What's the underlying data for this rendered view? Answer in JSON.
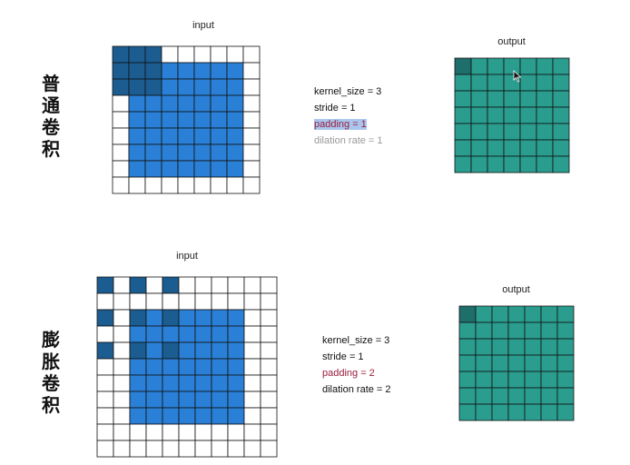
{
  "sections": [
    {
      "title": "普通卷积",
      "input_label": "input",
      "output_label": "output",
      "params": {
        "kernel": "kernel_size = 3",
        "stride": "stride = 1",
        "padding": "padding = 1",
        "dilation": "dilation rate = 1"
      },
      "input_grid": {
        "size": 9,
        "padding": 1,
        "kernel_cells": [
          [
            0,
            0
          ],
          [
            0,
            1
          ],
          [
            0,
            2
          ],
          [
            1,
            0
          ],
          [
            1,
            1
          ],
          [
            1,
            2
          ],
          [
            2,
            0
          ],
          [
            2,
            1
          ],
          [
            2,
            2
          ]
        ]
      },
      "output_grid": {
        "size": 7
      }
    },
    {
      "title": "膨胀卷积",
      "input_label": "input",
      "output_label": "output",
      "params": {
        "kernel": "kernel_size = 3",
        "stride": "stride = 1",
        "padding": "padding = 2",
        "dilation": "dilation rate = 2"
      },
      "input_grid": {
        "size": 11,
        "padding": 2,
        "kernel_cells": [
          [
            0,
            0
          ],
          [
            0,
            2
          ],
          [
            0,
            4
          ],
          [
            2,
            0
          ],
          [
            2,
            2
          ],
          [
            2,
            4
          ],
          [
            4,
            0
          ],
          [
            4,
            2
          ],
          [
            4,
            4
          ]
        ]
      },
      "output_grid": {
        "size": 7
      }
    }
  ],
  "colors": {
    "input_fill": "#2a80d6",
    "kernel_fill": "#1b5d91",
    "output_fill": "#2a9d8f",
    "output_active": "#1e6e6b",
    "grid_line": "#111111"
  }
}
